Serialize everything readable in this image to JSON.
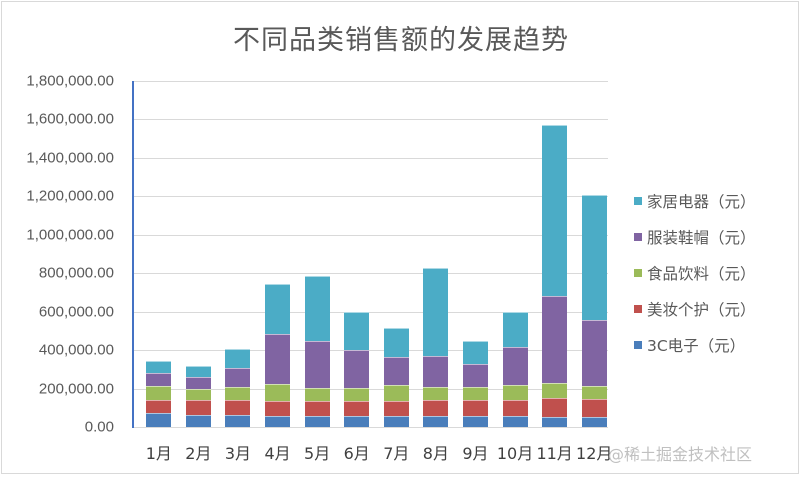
{
  "chart_data": {
    "type": "bar",
    "stacked": true,
    "title": "不同品类销售额的发展趋势",
    "xlabel": "",
    "ylabel": "",
    "ylim": [
      0,
      1800000
    ],
    "y_ticks": [
      "0.00",
      "200,000.00",
      "400,000.00",
      "600,000.00",
      "800,000.00",
      "1,000,000.00",
      "1,200,000.00",
      "1,400,000.00",
      "1,600,000.00",
      "1,800,000.00"
    ],
    "grid": true,
    "legend_position": "right",
    "categories": [
      "1月",
      "2月",
      "3月",
      "4月",
      "5月",
      "6月",
      "7月",
      "8月",
      "9月",
      "10月",
      "11月",
      "12月"
    ],
    "series": [
      {
        "name": "3C电子（元）",
        "color": "#4a7ebb",
        "values": [
          73000,
          60000,
          60000,
          55000,
          55000,
          55000,
          55000,
          55000,
          55000,
          55000,
          52000,
          52000
        ]
      },
      {
        "name": "美妆个护（元）",
        "color": "#c0504d",
        "values": [
          67000,
          80000,
          80000,
          80000,
          80000,
          80000,
          82000,
          85000,
          85000,
          85000,
          98000,
          95000
        ]
      },
      {
        "name": "食品饮料（元）",
        "color": "#9bbb59",
        "values": [
          73000,
          57000,
          70000,
          88000,
          68000,
          68000,
          80000,
          68000,
          68000,
          80000,
          78000,
          68000
        ]
      },
      {
        "name": "服装鞋帽（元）",
        "color": "#8064a2",
        "values": [
          68000,
          65000,
          95000,
          262000,
          243000,
          200000,
          148000,
          160000,
          120000,
          195000,
          454000,
          340000
        ]
      },
      {
        "name": "家居电器（元）",
        "color": "#4bacc6",
        "values": [
          64000,
          58000,
          100000,
          260000,
          338000,
          197000,
          150000,
          462000,
          122000,
          185000,
          890000,
          650000
        ]
      }
    ]
  },
  "legend": [
    {
      "label": "家居电器（元）",
      "color": "#4bacc6"
    },
    {
      "label": "服装鞋帽（元）",
      "color": "#8064a2"
    },
    {
      "label": "食品饮料（元）",
      "color": "#9bbb59"
    },
    {
      "label": "美妆个护（元）",
      "color": "#c0504d"
    },
    {
      "label": "3C电子（元）",
      "color": "#4a7ebb"
    }
  ],
  "watermark": "@稀土掘金技术社区"
}
